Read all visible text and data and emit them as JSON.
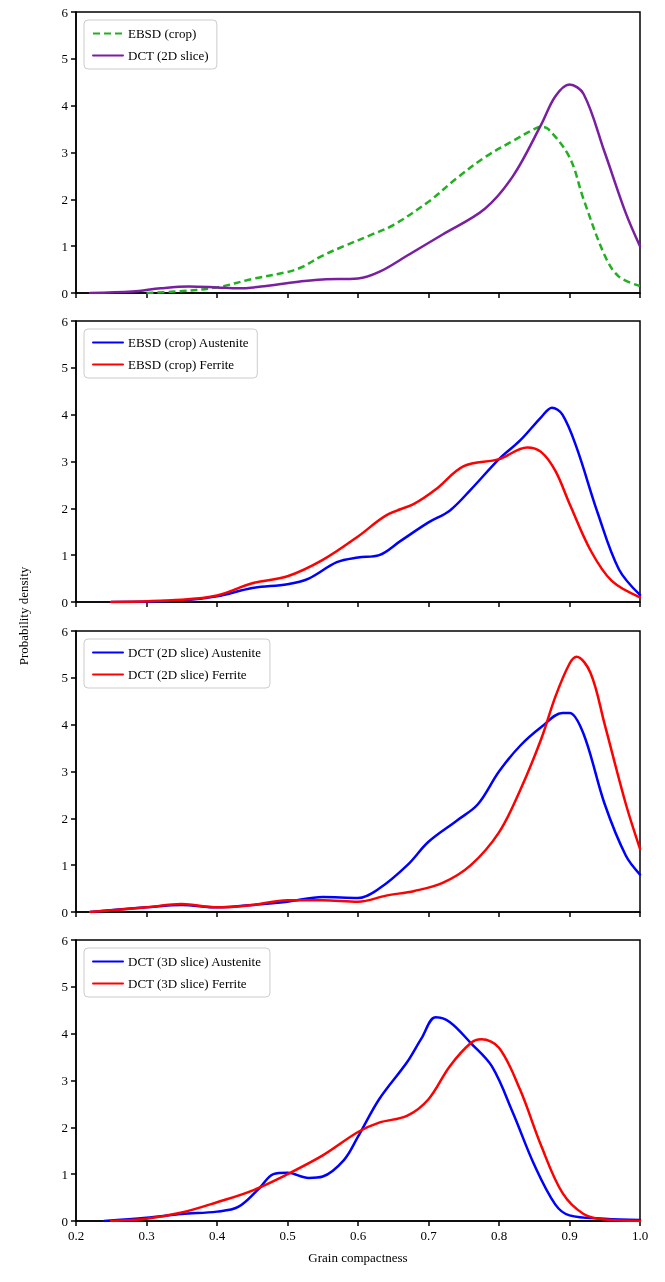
{
  "chart_data": [
    {
      "type": "line",
      "xlim": [
        0.2,
        1.0
      ],
      "xticks": [
        0.2,
        0.3,
        0.4,
        0.5,
        0.6,
        0.7,
        0.8,
        0.9,
        1.0
      ],
      "ylim": [
        0,
        6
      ],
      "yticks": [
        0,
        1,
        2,
        3,
        4,
        5,
        6
      ],
      "grid": false,
      "legend": "top left",
      "marker": "none",
      "tick_labels": "y",
      "series": [
        {
          "name": "EBSD (crop)",
          "color": "#22b022",
          "line_style": "dashed",
          "x": [
            0.3,
            0.34,
            0.4,
            0.45,
            0.5,
            0.52,
            0.55,
            0.58,
            0.62,
            0.65,
            0.7,
            0.74,
            0.78,
            0.82,
            0.85,
            0.86,
            0.87,
            0.9,
            0.92,
            0.95,
            0.97,
            1.0
          ],
          "values": [
            0,
            0.03,
            0.12,
            0.3,
            0.45,
            0.55,
            0.8,
            1.0,
            1.25,
            1.45,
            1.95,
            2.45,
            2.9,
            3.25,
            3.5,
            3.55,
            3.5,
            2.9,
            2.0,
            0.8,
            0.35,
            0.15
          ]
        },
        {
          "name": "DCT (2D slice)",
          "color": "#7b1fa2",
          "line_style": "solid",
          "x": [
            0.22,
            0.28,
            0.32,
            0.36,
            0.4,
            0.43,
            0.47,
            0.52,
            0.55,
            0.6,
            0.63,
            0.67,
            0.72,
            0.78,
            0.82,
            0.86,
            0.88,
            0.9,
            0.92,
            0.95,
            0.98,
            1.0
          ],
          "values": [
            0,
            0.03,
            0.1,
            0.14,
            0.12,
            0.1,
            0.15,
            0.25,
            0.29,
            0.31,
            0.45,
            0.8,
            1.25,
            1.8,
            2.5,
            3.6,
            4.2,
            4.45,
            4.25,
            3.0,
            1.7,
            1.0
          ]
        }
      ]
    },
    {
      "type": "line",
      "ylabel": "Probability density",
      "xlim": [
        0.2,
        1.0
      ],
      "xticks": [
        0.2,
        0.3,
        0.4,
        0.5,
        0.6,
        0.7,
        0.8,
        0.9,
        1.0
      ],
      "ylim": [
        0,
        6
      ],
      "yticks": [
        0,
        1,
        2,
        3,
        4,
        5,
        6
      ],
      "grid": false,
      "legend": "top left",
      "marker": "none",
      "line_style": "solid",
      "tick_labels": "y",
      "series": [
        {
          "name": "EBSD (crop) Austenite",
          "color": "#0000ff",
          "x": [
            0.25,
            0.35,
            0.4,
            0.45,
            0.5,
            0.53,
            0.57,
            0.6,
            0.63,
            0.66,
            0.7,
            0.73,
            0.76,
            0.8,
            0.83,
            0.86,
            0.875,
            0.89,
            0.91,
            0.94,
            0.97,
            1.0
          ],
          "values": [
            0,
            0.03,
            0.12,
            0.3,
            0.38,
            0.5,
            0.85,
            0.95,
            1.0,
            1.3,
            1.7,
            1.95,
            2.4,
            3.05,
            3.45,
            3.95,
            4.15,
            4.0,
            3.3,
            1.9,
            0.7,
            0.15
          ]
        },
        {
          "name": "EBSD (crop) Ferrite",
          "color": "#ff0000",
          "x": [
            0.25,
            0.35,
            0.4,
            0.45,
            0.5,
            0.55,
            0.6,
            0.64,
            0.68,
            0.71,
            0.75,
            0.8,
            0.84,
            0.86,
            0.88,
            0.9,
            0.93,
            0.96,
            1.0
          ],
          "values": [
            0,
            0.05,
            0.14,
            0.4,
            0.55,
            0.9,
            1.4,
            1.85,
            2.1,
            2.4,
            2.9,
            3.05,
            3.3,
            3.2,
            2.8,
            2.1,
            1.1,
            0.45,
            0.1
          ]
        }
      ]
    },
    {
      "type": "line",
      "xlim": [
        0.2,
        1.0
      ],
      "xticks": [
        0.2,
        0.3,
        0.4,
        0.5,
        0.6,
        0.7,
        0.8,
        0.9,
        1.0
      ],
      "ylim": [
        0,
        6
      ],
      "yticks": [
        0,
        1,
        2,
        3,
        4,
        5,
        6
      ],
      "grid": false,
      "legend": "top left",
      "marker": "none",
      "line_style": "solid",
      "tick_labels": "y",
      "series": [
        {
          "name": "DCT (2D slice) Austenite",
          "color": "#0000ff",
          "x": [
            0.22,
            0.3,
            0.35,
            0.4,
            0.45,
            0.5,
            0.55,
            0.6,
            0.63,
            0.67,
            0.7,
            0.74,
            0.77,
            0.8,
            0.83,
            0.86,
            0.89,
            0.9,
            0.92,
            0.95,
            0.98,
            1.0
          ],
          "values": [
            0,
            0.1,
            0.15,
            0.1,
            0.15,
            0.22,
            0.32,
            0.3,
            0.5,
            1.0,
            1.5,
            1.95,
            2.3,
            3.0,
            3.55,
            3.95,
            4.25,
            4.25,
            3.8,
            2.3,
            1.2,
            0.8
          ]
        },
        {
          "name": "DCT (2D slice) Ferrite",
          "color": "#ff0000",
          "x": [
            0.22,
            0.3,
            0.35,
            0.4,
            0.45,
            0.5,
            0.55,
            0.6,
            0.64,
            0.68,
            0.72,
            0.76,
            0.8,
            0.83,
            0.86,
            0.88,
            0.9,
            0.91,
            0.93,
            0.95,
            0.98,
            1.0
          ],
          "values": [
            0,
            0.1,
            0.17,
            0.1,
            0.15,
            0.25,
            0.25,
            0.22,
            0.35,
            0.45,
            0.62,
            1.0,
            1.7,
            2.6,
            3.7,
            4.6,
            5.3,
            5.45,
            5.1,
            4.0,
            2.3,
            1.35
          ]
        }
      ]
    },
    {
      "type": "line",
      "xlabel": "Grain compactness",
      "xlim": [
        0.2,
        1.0
      ],
      "xticks": [
        0.2,
        0.3,
        0.4,
        0.5,
        0.6,
        0.7,
        0.8,
        0.9,
        {
          "value": 1.0,
          "label": "1.0"
        }
      ],
      "ylim": [
        0,
        6
      ],
      "yticks": [
        0,
        1,
        2,
        3,
        4,
        5,
        6
      ],
      "grid": false,
      "legend": "top left",
      "marker": "none",
      "line_style": "solid",
      "series": [
        {
          "name": "DCT (3D slice) Austenite",
          "color": "#0000ff",
          "x": [
            0.24,
            0.3,
            0.35,
            0.4,
            0.43,
            0.46,
            0.48,
            0.5,
            0.53,
            0.55,
            0.58,
            0.6,
            0.63,
            0.67,
            0.69,
            0.71,
            0.73,
            0.76,
            0.79,
            0.82,
            0.85,
            0.88,
            0.9,
            0.95,
            1.0
          ],
          "values": [
            0,
            0.07,
            0.15,
            0.2,
            0.3,
            0.7,
            1.0,
            1.03,
            0.92,
            0.95,
            1.3,
            1.8,
            2.6,
            3.4,
            3.9,
            4.35,
            4.25,
            3.8,
            3.3,
            2.3,
            1.2,
            0.35,
            0.12,
            0.05,
            0.02
          ]
        },
        {
          "name": "DCT (3D slice) Ferrite",
          "color": "#ff0000",
          "x": [
            0.25,
            0.3,
            0.35,
            0.4,
            0.45,
            0.5,
            0.55,
            0.6,
            0.63,
            0.67,
            0.7,
            0.73,
            0.76,
            0.775,
            0.8,
            0.83,
            0.86,
            0.89,
            0.92,
            0.95,
            1.0
          ],
          "values": [
            0,
            0.05,
            0.18,
            0.4,
            0.65,
            1.0,
            1.4,
            1.9,
            2.1,
            2.25,
            2.6,
            3.3,
            3.8,
            3.88,
            3.7,
            2.8,
            1.6,
            0.6,
            0.15,
            0.03,
            0
          ]
        }
      ]
    }
  ]
}
